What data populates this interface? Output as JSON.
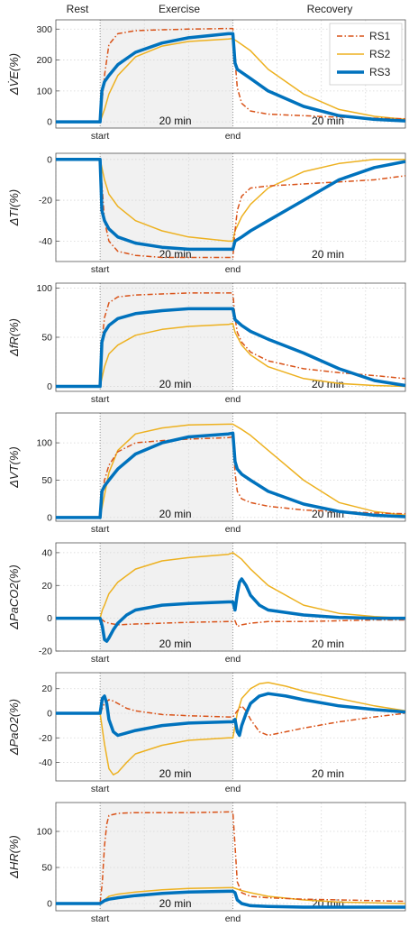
{
  "phases": {
    "rest": "Rest",
    "exercise": "Exercise",
    "recovery": "Recovery"
  },
  "legend": [
    {
      "name": "RS1",
      "color": "#D95319",
      "dash": "dashdot",
      "width": 1.5
    },
    {
      "name": "RS2",
      "color": "#EDB120",
      "dash": "solid",
      "width": 1.5
    },
    {
      "name": "RS3",
      "color": "#0072BD",
      "dash": "solid",
      "width": 3.5
    }
  ],
  "colors": {
    "shade": "#f1f1f1",
    "grid": "#d6d6d6",
    "axis": "#555555"
  },
  "chart_data": [
    {
      "type": "line",
      "ylabel": "ΔV̇E(%)",
      "yticks": [
        "0",
        "100",
        "200",
        "300"
      ],
      "ytick_values": [
        0,
        100,
        200,
        300
      ],
      "ylim": [
        -20,
        330
      ],
      "xticklabels": [
        "start",
        "end"
      ],
      "duration_label": "20 min",
      "series": [
        {
          "name": "RS1",
          "x": [
            0,
            10,
            11,
            12,
            14,
            18,
            24,
            30,
            39,
            40,
            40.5,
            41,
            42,
            44,
            48,
            56,
            64,
            72,
            79
          ],
          "y": [
            0,
            0,
            150,
            250,
            285,
            295,
            298,
            300,
            302,
            302,
            200,
            110,
            60,
            35,
            25,
            20,
            15,
            12,
            10
          ]
        },
        {
          "name": "RS2",
          "x": [
            0,
            10,
            11,
            12,
            14,
            18,
            24,
            30,
            39,
            40,
            40.5,
            42,
            44,
            48,
            56,
            64,
            72,
            79
          ],
          "y": [
            0,
            0,
            40,
            90,
            150,
            210,
            245,
            260,
            268,
            270,
            265,
            250,
            230,
            170,
            90,
            40,
            18,
            8
          ]
        },
        {
          "name": "RS3",
          "x": [
            0,
            10,
            10.4,
            11,
            12,
            14,
            18,
            24,
            30,
            39,
            40,
            40.5,
            41,
            42,
            44,
            48,
            56,
            64,
            72,
            79
          ],
          "y": [
            0,
            0,
            100,
            130,
            150,
            185,
            225,
            255,
            272,
            285,
            285,
            190,
            170,
            160,
            140,
            100,
            50,
            20,
            8,
            3
          ]
        }
      ]
    },
    {
      "type": "line",
      "ylabel": "ΔTI(%)",
      "yticks": [
        "0",
        "-20",
        "-40"
      ],
      "ytick_values": [
        0,
        -20,
        -40
      ],
      "ylim": [
        -50,
        3
      ],
      "xticklabels": [
        "start",
        "end"
      ],
      "duration_label": "20 min",
      "series": [
        {
          "name": "RS1",
          "x": [
            0,
            10,
            10.5,
            11,
            12,
            14,
            18,
            24,
            30,
            39,
            40,
            40.5,
            41,
            42,
            44,
            48,
            56,
            64,
            72,
            79
          ],
          "y": [
            0,
            0,
            -15,
            -30,
            -40,
            -45,
            -47,
            -48,
            -48,
            -48,
            -48,
            -35,
            -25,
            -18,
            -14,
            -13,
            -12,
            -11,
            -10,
            -8
          ]
        },
        {
          "name": "RS2",
          "x": [
            0,
            10,
            11,
            12,
            14,
            18,
            24,
            30,
            39,
            40,
            40.5,
            42,
            44,
            48,
            56,
            64,
            72,
            79
          ],
          "y": [
            0,
            0,
            -10,
            -17,
            -23,
            -30,
            -35,
            -38,
            -40,
            -40,
            -35,
            -28,
            -22,
            -14,
            -6,
            -2,
            0,
            0
          ]
        },
        {
          "name": "RS3",
          "x": [
            0,
            10,
            10.4,
            11,
            12,
            14,
            18,
            24,
            30,
            39,
            40,
            40.5,
            42,
            44,
            48,
            56,
            64,
            72,
            79
          ],
          "y": [
            0,
            0,
            -25,
            -30,
            -34,
            -38,
            -41,
            -43,
            -44,
            -44,
            -44,
            -40,
            -38,
            -35,
            -30,
            -20,
            -10,
            -4,
            -1
          ]
        }
      ]
    },
    {
      "type": "line",
      "ylabel": "ΔfR(%)",
      "yticks": [
        "0",
        "50",
        "100"
      ],
      "ytick_values": [
        0,
        50,
        100
      ],
      "ylim": [
        -5,
        105
      ],
      "xticklabels": [
        "start",
        "end"
      ],
      "duration_label": "20 min",
      "series": [
        {
          "name": "RS1",
          "x": [
            0,
            10,
            10.5,
            11,
            12,
            14,
            18,
            24,
            30,
            39,
            40,
            40.5,
            41,
            42,
            44,
            48,
            56,
            64,
            72,
            79
          ],
          "y": [
            0,
            0,
            50,
            70,
            85,
            91,
            93,
            94,
            95,
            95,
            95,
            70,
            55,
            45,
            35,
            26,
            18,
            14,
            11,
            8
          ]
        },
        {
          "name": "RS2",
          "x": [
            0,
            10,
            11,
            12,
            14,
            18,
            24,
            30,
            39,
            40,
            40.5,
            42,
            44,
            48,
            56,
            64,
            72,
            79
          ],
          "y": [
            0,
            0,
            20,
            33,
            42,
            52,
            58,
            61,
            63,
            64,
            55,
            42,
            32,
            20,
            8,
            3,
            1,
            0
          ]
        },
        {
          "name": "RS3",
          "x": [
            0,
            10,
            10.4,
            11,
            12,
            14,
            18,
            24,
            30,
            39,
            40,
            40.5,
            42,
            44,
            48,
            56,
            64,
            72,
            79
          ],
          "y": [
            0,
            0,
            45,
            55,
            62,
            69,
            74,
            77,
            79,
            79,
            79,
            68,
            62,
            56,
            48,
            34,
            18,
            6,
            1
          ]
        }
      ]
    },
    {
      "type": "line",
      "ylabel": "ΔVT(%)",
      "yticks": [
        "0",
        "50",
        "100"
      ],
      "ytick_values": [
        0,
        50,
        100
      ],
      "ylim": [
        -5,
        140
      ],
      "xticklabels": [
        "start",
        "end"
      ],
      "duration_label": "20 min",
      "series": [
        {
          "name": "RS1",
          "x": [
            0,
            10,
            10.5,
            11,
            12,
            14,
            18,
            24,
            30,
            39,
            40,
            40.5,
            41,
            42,
            44,
            48,
            56,
            64,
            72,
            79
          ],
          "y": [
            0,
            0,
            30,
            50,
            70,
            88,
            100,
            103,
            105,
            107,
            108,
            60,
            35,
            25,
            20,
            15,
            10,
            8,
            6,
            5
          ]
        },
        {
          "name": "RS2",
          "x": [
            0,
            10,
            10.5,
            11,
            12,
            14,
            18,
            24,
            30,
            39,
            40,
            42,
            44,
            48,
            56,
            64,
            72,
            79
          ],
          "y": [
            0,
            0,
            15,
            30,
            60,
            90,
            112,
            120,
            124,
            125,
            125,
            118,
            110,
            90,
            50,
            20,
            8,
            3
          ]
        },
        {
          "name": "RS3",
          "x": [
            0,
            10,
            10.4,
            11,
            12,
            14,
            18,
            24,
            30,
            39,
            40,
            40.5,
            41,
            42,
            44,
            48,
            56,
            64,
            72,
            79
          ],
          "y": [
            0,
            0,
            35,
            42,
            50,
            65,
            85,
            100,
            108,
            112,
            113,
            75,
            65,
            58,
            50,
            35,
            18,
            8,
            3,
            1
          ]
        }
      ]
    },
    {
      "type": "line",
      "ylabel": "ΔPaCO2(%)",
      "yticks": [
        "-20",
        "0",
        "20",
        "40"
      ],
      "ytick_values": [
        -20,
        0,
        20,
        40
      ],
      "ylim": [
        -20,
        46
      ],
      "xticklabels": [
        "start",
        "end"
      ],
      "duration_label": "20 min",
      "series": [
        {
          "name": "RS1",
          "x": [
            0,
            10,
            11,
            12,
            14,
            18,
            24,
            30,
            39,
            40,
            40.5,
            41,
            42,
            44,
            48,
            56,
            64,
            72,
            79
          ],
          "y": [
            0,
            0,
            -2,
            -3,
            -4,
            -3.5,
            -3,
            -2.5,
            -2,
            -2,
            -1.5,
            -5,
            -4,
            -3,
            -2,
            -2,
            -1.5,
            -1,
            -1
          ]
        },
        {
          "name": "RS2",
          "x": [
            0,
            10,
            10.5,
            11,
            12,
            14,
            18,
            24,
            30,
            39,
            40,
            42,
            44,
            48,
            56,
            64,
            72,
            79
          ],
          "y": [
            0,
            0,
            5,
            8,
            15,
            22,
            30,
            35,
            37,
            39,
            40,
            36,
            30,
            20,
            8,
            3,
            1,
            0
          ]
        },
        {
          "name": "RS3",
          "x": [
            0,
            10,
            10.5,
            11,
            11.5,
            12,
            13,
            14,
            16,
            18,
            24,
            30,
            39,
            40,
            40.5,
            41,
            41.5,
            42,
            43,
            44,
            46,
            48,
            56,
            64,
            72,
            79
          ],
          "y": [
            0,
            0,
            -5,
            -13,
            -14,
            -12,
            -7,
            -3,
            2,
            5,
            8,
            9,
            10,
            10,
            5,
            15,
            22,
            24,
            20,
            14,
            8,
            5,
            2,
            0.5,
            0,
            0
          ]
        }
      ]
    },
    {
      "type": "line",
      "ylabel": "ΔPaO2(%)",
      "yticks": [
        "-40",
        "-20",
        "0",
        "20"
      ],
      "ytick_values": [
        -40,
        -20,
        0,
        20
      ],
      "ylim": [
        -55,
        33
      ],
      "xticklabels": [
        "start",
        "end"
      ],
      "duration_label": "20 min",
      "series": [
        {
          "name": "RS1",
          "x": [
            0,
            10,
            11,
            12,
            13,
            14,
            16,
            18,
            24,
            30,
            39,
            40,
            41,
            42,
            43,
            44,
            46,
            48,
            52,
            56,
            64,
            72,
            79
          ],
          "y": [
            0,
            0,
            8,
            11,
            10,
            8,
            4,
            2,
            -1,
            -2,
            -3,
            -3,
            2,
            6,
            2,
            -5,
            -15,
            -18,
            -15,
            -12,
            -7,
            -3,
            0
          ]
        },
        {
          "name": "RS2",
          "x": [
            0,
            10,
            11,
            12,
            13,
            14,
            16,
            18,
            24,
            30,
            39,
            40,
            41,
            42,
            44,
            46,
            48,
            52,
            56,
            64,
            72,
            79
          ],
          "y": [
            0,
            0,
            -25,
            -45,
            -50,
            -48,
            -40,
            -33,
            -26,
            -22,
            -20,
            -20,
            0,
            12,
            20,
            24,
            25,
            22,
            18,
            12,
            6,
            2
          ]
        },
        {
          "name": "RS3",
          "x": [
            0,
            10,
            10.5,
            11,
            11.5,
            12,
            13,
            14,
            16,
            18,
            24,
            30,
            39,
            40,
            40.5,
            41,
            41.5,
            42,
            43,
            44,
            46,
            48,
            52,
            56,
            64,
            72,
            79
          ],
          "y": [
            0,
            0,
            12,
            14,
            8,
            -5,
            -15,
            -18,
            -16,
            -14,
            -10,
            -8,
            -7,
            -7,
            -5,
            -15,
            -18,
            -10,
            0,
            8,
            14,
            16,
            14,
            11,
            6,
            3,
            1
          ]
        }
      ]
    },
    {
      "type": "line",
      "ylabel": "ΔHR(%)",
      "yticks": [
        "0",
        "50",
        "100"
      ],
      "ytick_values": [
        0,
        50,
        100
      ],
      "ylim": [
        -10,
        140
      ],
      "xticklabels": [
        "start",
        "end"
      ],
      "duration_label": "20 min",
      "series": [
        {
          "name": "RS1",
          "x": [
            0,
            10,
            10.5,
            11,
            11.5,
            12,
            14,
            18,
            24,
            30,
            39,
            40,
            40.5,
            41,
            42,
            44,
            48,
            56,
            64,
            72,
            79
          ],
          "y": [
            0,
            0,
            30,
            80,
            110,
            122,
            125,
            126,
            126,
            126,
            127,
            127,
            80,
            30,
            15,
            10,
            8,
            6,
            5,
            4,
            3
          ]
        },
        {
          "name": "RS2",
          "x": [
            0,
            10,
            11,
            12,
            14,
            18,
            24,
            30,
            39,
            40,
            41,
            42,
            44,
            48,
            56,
            64,
            72,
            79
          ],
          "y": [
            0,
            0,
            5,
            10,
            13,
            16,
            19,
            21,
            22,
            22,
            20,
            18,
            15,
            10,
            5,
            2,
            1,
            0
          ]
        },
        {
          "name": "RS3",
          "x": [
            0,
            10,
            11,
            12,
            14,
            18,
            24,
            30,
            39,
            40,
            40.5,
            41,
            42,
            44,
            48,
            56,
            64,
            72,
            79
          ],
          "y": [
            0,
            0,
            4,
            6,
            8,
            11,
            14,
            16,
            17,
            17,
            15,
            5,
            0,
            -3,
            -4,
            -5,
            -5,
            -5,
            -5
          ]
        }
      ]
    }
  ]
}
